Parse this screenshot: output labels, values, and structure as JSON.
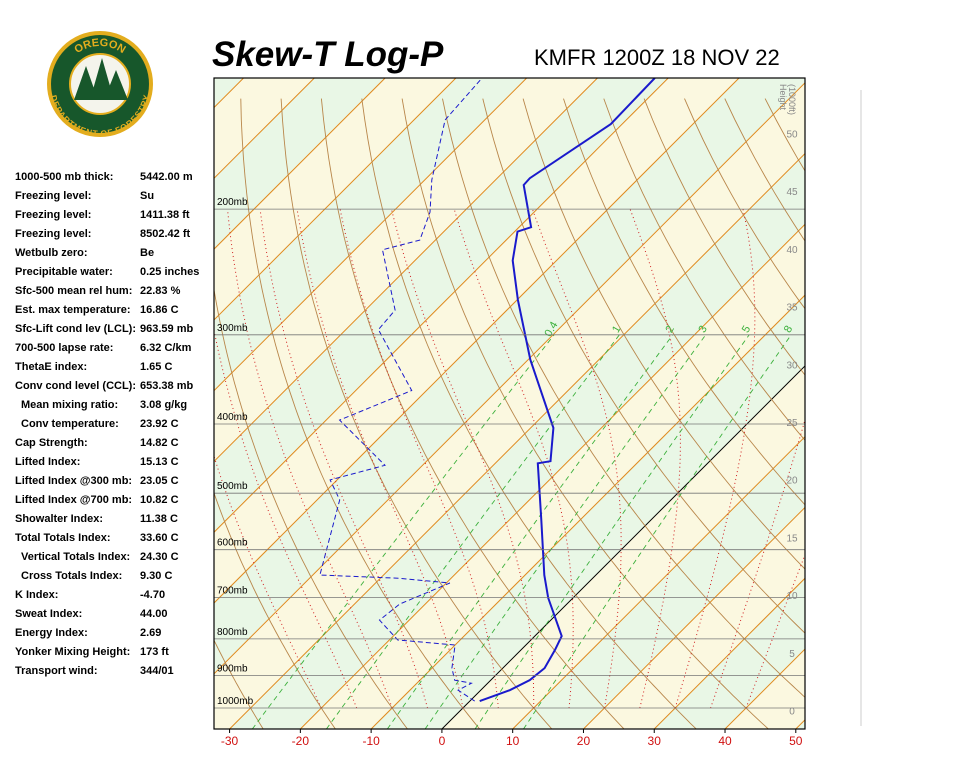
{
  "logo": {
    "top": "OREGON",
    "bottom": "DEPARTMENT OF FORESTRY"
  },
  "header": {
    "title": "Skew-T Log-P",
    "station": "KMFR 1200Z 18 NOV 22"
  },
  "stats": [
    [
      "1000-500 mb thick:",
      "5442.00 m"
    ],
    [
      "Freezing level:",
      "Su"
    ],
    [
      "Freezing level:",
      "1411.38 ft"
    ],
    [
      "Freezing level:",
      "8502.42 ft"
    ],
    [
      "Wetbulb zero:",
      "Be"
    ],
    [
      "Precipitable water:",
      "0.25 inches"
    ],
    [
      "Sfc-500 mean rel hum:",
      "22.83 %"
    ],
    [
      "Est. max temperature:",
      "16.86 C"
    ],
    [
      "Sfc-Lift cond lev (LCL):",
      "963.59 mb"
    ],
    [
      "700-500 lapse rate:",
      "6.32 C/km"
    ],
    [
      "ThetaE index:",
      "1.65 C"
    ],
    [
      "Conv cond level (CCL):",
      "653.38 mb"
    ],
    [
      "Mean mixing ratio:",
      "3.08 g/kg"
    ],
    [
      "Conv temperature:",
      "23.92 C"
    ],
    [
      "Cap Strength:",
      "14.82 C"
    ],
    [
      "Lifted Index:",
      "15.13 C"
    ],
    [
      "Lifted Index @300 mb:",
      "23.05 C"
    ],
    [
      "Lifted Index @700 mb:",
      "10.82 C"
    ],
    [
      "Showalter Index:",
      "11.38 C"
    ],
    [
      "Total Totals Index:",
      "33.60 C"
    ],
    [
      "Vertical Totals Index:",
      "24.30 C"
    ],
    [
      "Cross Totals Index:",
      "9.30 C"
    ],
    [
      "K Index:",
      "-4.70"
    ],
    [
      "Sweat Index:",
      "44.00"
    ],
    [
      "Energy Index:",
      "2.69"
    ],
    [
      "Yonker Mixing Height:",
      "173 ft"
    ],
    [
      "Transport wind:",
      "344/01"
    ]
  ],
  "chart_data": {
    "type": "skewt",
    "xlim": [
      -32.2,
      51.3
    ],
    "xticks": [
      -30,
      -20,
      -10,
      0,
      10,
      20,
      30,
      40,
      50
    ],
    "ylim": [
      1070,
      131
    ],
    "ylog": true,
    "skew_degrees": 45,
    "yticks": [
      {
        "value": 1000,
        "label": "1000mb"
      },
      {
        "value": 900,
        "label": "900mb"
      },
      {
        "value": 800,
        "label": "800mb"
      },
      {
        "value": 700,
        "label": "700mb"
      },
      {
        "value": 600,
        "label": "600mb"
      },
      {
        "value": 500,
        "label": "500mb"
      },
      {
        "value": 400,
        "label": "400mb"
      },
      {
        "value": 300,
        "label": "300mb"
      },
      {
        "value": 200,
        "label": "200mb"
      }
    ],
    "y2label": [
      "Height",
      "(1000ft)"
    ],
    "y2lim": [
      -1.6,
      54.8
    ],
    "y2ticks": [
      0,
      5,
      10,
      15,
      20,
      25,
      30,
      35,
      40,
      45,
      50
    ],
    "mixing_ratios": [
      0.4,
      1,
      2,
      3,
      5,
      8
    ],
    "series": [
      {
        "color": "#1a1acc",
        "dash": false,
        "y": [
          978,
          944,
          914,
          879,
          829,
          793,
          701,
          651,
          545,
          454,
          451,
          405,
          325,
          268,
          236,
          215,
          212,
          185,
          181,
          152,
          131
        ],
        "values": [
          1.4,
          4.1,
          5.5,
          5.9,
          4.8,
          3.8,
          -3.5,
          -7.3,
          -15.5,
          -24.0,
          -22.5,
          -26.8,
          -39.7,
          -49.9,
          -56.2,
          -59.6,
          -58.3,
          -65.3,
          -65.4,
          -61.6,
          -61.9
        ]
      },
      {
        "color": "#1a1acc",
        "dash": true,
        "y": [
          978,
          944,
          923,
          914,
          879,
          816,
          803,
          753,
          715,
          668,
          658,
          651,
          511,
          479,
          457,
          395,
          359,
          295,
          277,
          228,
          221,
          202,
          182,
          150,
          131
        ],
        "values": [
          0.7,
          -3.2,
          -2.3,
          -5.1,
          -7.2,
          -10.0,
          -18.8,
          -24.2,
          -23.6,
          -19.5,
          -27.3,
          -39.0,
          -46.8,
          -51.0,
          -45.3,
          -58.1,
          -52.1,
          -65.4,
          -65.8,
          -76.1,
          -72.2,
          -74.7,
          -79.0,
          -85.6,
          -86.3
        ]
      }
    ]
  }
}
